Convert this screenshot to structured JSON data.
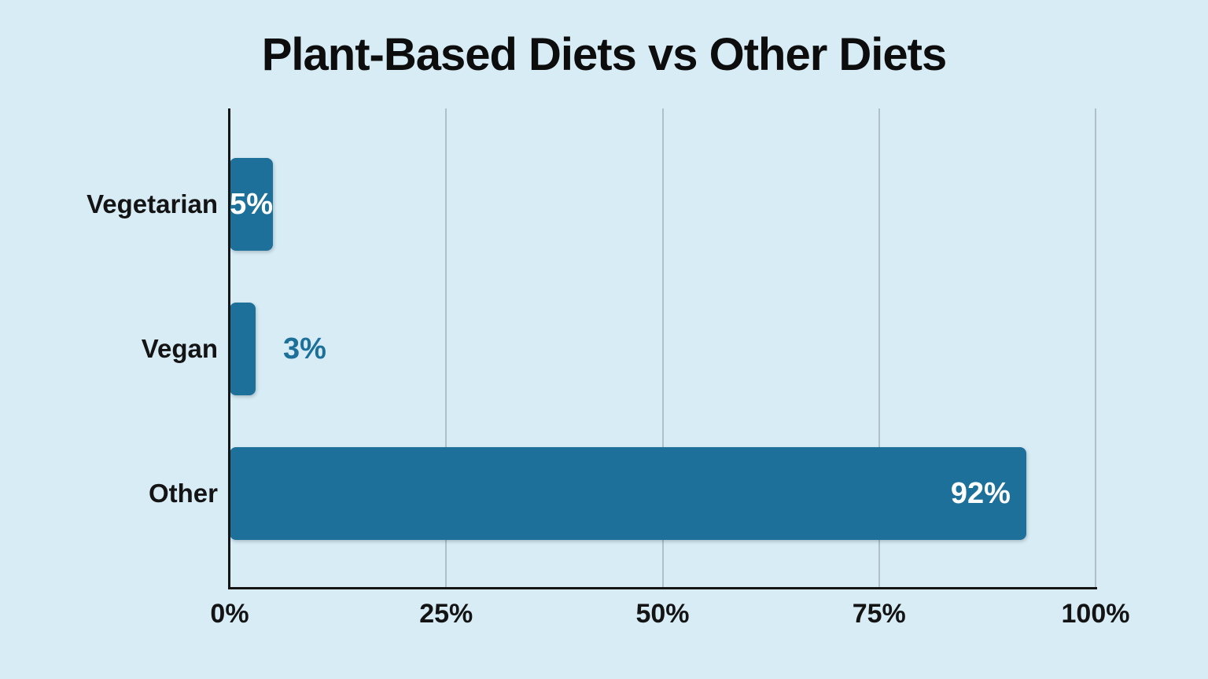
{
  "chart_data": {
    "type": "bar",
    "orientation": "horizontal",
    "title": "Plant-Based Diets vs Other Diets",
    "categories": [
      "Vegetarian",
      "Vegan",
      "Other"
    ],
    "values": [
      5,
      3,
      92
    ],
    "data_labels": [
      {
        "text": "5%",
        "placement": "inside-center",
        "color": "#ffffff"
      },
      {
        "text": "3%",
        "placement": "outside",
        "color": "#1c7099"
      },
      {
        "text": "92%",
        "placement": "inside-right",
        "color": "#ffffff"
      }
    ],
    "x_tick_values": [
      0,
      25,
      50,
      75,
      100
    ],
    "x_tick_labels": [
      "0%",
      "25%",
      "50%",
      "75%",
      "100%"
    ],
    "xlim": [
      0,
      100
    ],
    "xlabel": "",
    "ylabel": "",
    "grid": "vertical",
    "legend_position": "none",
    "colors": {
      "bar": "#1c7099",
      "background": "#d7ecf5",
      "gridline": "#aec0c9",
      "axis": "#141414",
      "title_text": "#0d0d0d",
      "category_text": "#141414",
      "tick_text": "#141414"
    }
  }
}
